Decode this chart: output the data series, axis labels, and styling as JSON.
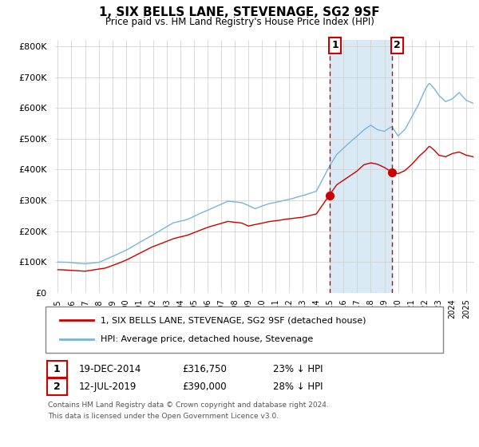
{
  "title": "1, SIX BELLS LANE, STEVENAGE, SG2 9SF",
  "subtitle": "Price paid vs. HM Land Registry's House Price Index (HPI)",
  "legend_line1": "1, SIX BELLS LANE, STEVENAGE, SG2 9SF (detached house)",
  "legend_line2": "HPI: Average price, detached house, Stevenage",
  "annotation1_date": "19-DEC-2014",
  "annotation1_price": 316750,
  "annotation1_pct": "23% ↓ HPI",
  "annotation2_date": "12-JUL-2019",
  "annotation2_price": 390000,
  "annotation2_pct": "28% ↓ HPI",
  "footnote1": "Contains HM Land Registry data © Crown copyright and database right 2024.",
  "footnote2": "This data is licensed under the Open Government Licence v3.0.",
  "hpi_color": "#7ab4d8",
  "price_color": "#cc0000",
  "vline_color": "#cc0000",
  "shade_color": "#daeaf5",
  "grid_color": "#cccccc",
  "bg_color": "#ffffff",
  "ylim": [
    0,
    820000
  ],
  "yticks": [
    0,
    100000,
    200000,
    300000,
    400000,
    500000,
    600000,
    700000,
    800000
  ],
  "start_year": 1995,
  "end_year": 2025,
  "sale1_t": 2014.96,
  "sale1_price": 316750,
  "sale2_t": 2019.54,
  "sale2_price": 390000
}
